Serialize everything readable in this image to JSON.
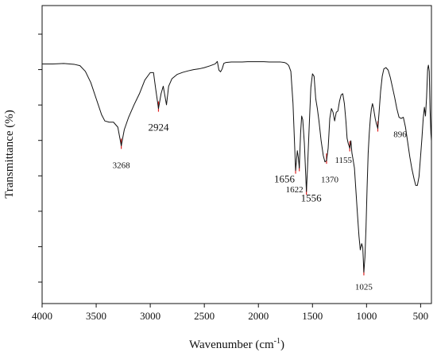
{
  "chart_data": {
    "type": "line",
    "title": "",
    "xlabel": "Wavenumber (cm",
    "xlabel_sup": "-1",
    "xlabel_end": ")",
    "ylabel": "Transmittance (%)",
    "xlim": [
      4000,
      400
    ],
    "x_reversed": true,
    "x_ticks": [
      "4000",
      "3500",
      "3000",
      "2500",
      "2000",
      "1500",
      "1000",
      "500"
    ],
    "x_tick_values": [
      4000,
      3500,
      3000,
      2500,
      2000,
      1500,
      1000,
      500
    ],
    "ylim": [
      0,
      100
    ],
    "y_tick_count": 8,
    "y_tick_labels_shown": false,
    "grid": false,
    "colors": {
      "line": "#111111",
      "peak_marker": "#e02020",
      "axis": "#111111"
    },
    "series": [
      {
        "points": [
          [
            4000,
            88.0
          ],
          [
            3900,
            88.0
          ],
          [
            3800,
            88.2
          ],
          [
            3700,
            87.8
          ],
          [
            3650,
            87.3
          ],
          [
            3600,
            85.0
          ],
          [
            3550,
            80.5
          ],
          [
            3500,
            74.0
          ],
          [
            3450,
            67.5
          ],
          [
            3420,
            65.0
          ],
          [
            3380,
            64.5
          ],
          [
            3340,
            64.5
          ],
          [
            3300,
            62.5
          ],
          [
            3268,
            55.0
          ],
          [
            3240,
            61.5
          ],
          [
            3200,
            66.5
          ],
          [
            3150,
            71.5
          ],
          [
            3100,
            76.0
          ],
          [
            3050,
            81.5
          ],
          [
            3000,
            84.5
          ],
          [
            2970,
            84.5
          ],
          [
            2950,
            78.0
          ],
          [
            2924,
            70.0
          ],
          [
            2900,
            76.0
          ],
          [
            2880,
            79.0
          ],
          [
            2860,
            74.0
          ],
          [
            2850,
            71.5
          ],
          [
            2830,
            79.0
          ],
          [
            2800,
            82.0
          ],
          [
            2750,
            83.8
          ],
          [
            2700,
            84.6
          ],
          [
            2650,
            85.2
          ],
          [
            2600,
            85.7
          ],
          [
            2550,
            86.0
          ],
          [
            2500,
            86.5
          ],
          [
            2450,
            87.2
          ],
          [
            2400,
            88.0
          ],
          [
            2380,
            89.0
          ],
          [
            2365,
            85.5
          ],
          [
            2350,
            84.8
          ],
          [
            2335,
            86.0
          ],
          [
            2320,
            88.2
          ],
          [
            2300,
            88.6
          ],
          [
            2250,
            88.8
          ],
          [
            2200,
            88.8
          ],
          [
            2150,
            88.8
          ],
          [
            2100,
            88.9
          ],
          [
            2050,
            88.9
          ],
          [
            2000,
            88.9
          ],
          [
            1950,
            88.9
          ],
          [
            1900,
            88.8
          ],
          [
            1850,
            88.8
          ],
          [
            1800,
            88.8
          ],
          [
            1760,
            88.6
          ],
          [
            1740,
            88.2
          ],
          [
            1720,
            87.4
          ],
          [
            1700,
            85.0
          ],
          [
            1680,
            72.0
          ],
          [
            1656,
            45.0
          ],
          [
            1640,
            53.0
          ],
          [
            1630,
            50.0
          ],
          [
            1622,
            46.0
          ],
          [
            1610,
            60.0
          ],
          [
            1600,
            67.0
          ],
          [
            1590,
            65.5
          ],
          [
            1575,
            56.0
          ],
          [
            1556,
            36.5
          ],
          [
            1545,
            47.0
          ],
          [
            1530,
            63.0
          ],
          [
            1515,
            78.5
          ],
          [
            1500,
            84.0
          ],
          [
            1485,
            83.0
          ],
          [
            1470,
            74.0
          ],
          [
            1455,
            70.0
          ],
          [
            1440,
            65.0
          ],
          [
            1420,
            57.0
          ],
          [
            1400,
            51.0
          ],
          [
            1385,
            48.5
          ],
          [
            1370,
            49.0
          ],
          [
            1355,
            54.0
          ],
          [
            1340,
            66.0
          ],
          [
            1325,
            70.0
          ],
          [
            1310,
            68.5
          ],
          [
            1295,
            65.0
          ],
          [
            1280,
            68.5
          ],
          [
            1265,
            69.0
          ],
          [
            1250,
            73.0
          ],
          [
            1235,
            75.5
          ],
          [
            1220,
            76.0
          ],
          [
            1205,
            72.0
          ],
          [
            1190,
            64.5
          ],
          [
            1180,
            58.0
          ],
          [
            1170,
            56.0
          ],
          [
            1155,
            54.0
          ],
          [
            1145,
            57.0
          ],
          [
            1135,
            52.0
          ],
          [
            1125,
            49.5
          ],
          [
            1112,
            46.0
          ],
          [
            1100,
            38.0
          ],
          [
            1085,
            28.0
          ],
          [
            1070,
            18.5
          ],
          [
            1058,
            13.0
          ],
          [
            1045,
            15.5
          ],
          [
            1035,
            14.0
          ],
          [
            1025,
            4.0
          ],
          [
            1015,
            10.0
          ],
          [
            1005,
            22.0
          ],
          [
            995,
            38.0
          ],
          [
            985,
            52.0
          ],
          [
            975,
            60.0
          ],
          [
            965,
            66.0
          ],
          [
            955,
            70.0
          ],
          [
            945,
            72.0
          ],
          [
            935,
            70.0
          ],
          [
            920,
            66.0
          ],
          [
            910,
            64.0
          ],
          [
            896,
            62.0
          ],
          [
            885,
            68.0
          ],
          [
            870,
            77.0
          ],
          [
            855,
            83.0
          ],
          [
            840,
            86.0
          ],
          [
            820,
            86.5
          ],
          [
            800,
            85.5
          ],
          [
            780,
            82.5
          ],
          [
            760,
            78.5
          ],
          [
            740,
            74.5
          ],
          [
            720,
            70.0
          ],
          [
            700,
            66.5
          ],
          [
            680,
            66.0
          ],
          [
            660,
            66.5
          ],
          [
            640,
            62.5
          ],
          [
            620,
            56.5
          ],
          [
            600,
            50.5
          ],
          [
            580,
            45.5
          ],
          [
            560,
            41.5
          ],
          [
            545,
            39.0
          ],
          [
            530,
            39.0
          ],
          [
            515,
            42.5
          ],
          [
            500,
            51.0
          ],
          [
            488,
            58.0
          ],
          [
            476,
            66.0
          ],
          [
            465,
            70.5
          ],
          [
            455,
            67.0
          ],
          [
            445,
            74.5
          ],
          [
            435,
            86.0
          ],
          [
            428,
            87.5
          ],
          [
            420,
            85.0
          ],
          [
            413,
            70.0
          ],
          [
            405,
            60.0
          ],
          [
            400,
            57.0
          ]
        ]
      }
    ],
    "peaks": [
      {
        "label": "3268",
        "x": 3268,
        "y": 55.0,
        "text_y": 46.0,
        "dx": 0,
        "size": "small",
        "tick": true
      },
      {
        "label": "2924",
        "x": 2924,
        "y": 70.0,
        "text_y": 61.0,
        "dx": 0,
        "size": "large",
        "tick": true
      },
      {
        "label": "1656",
        "x": 1656,
        "y": 45.0,
        "text_y": 40.2,
        "dx": -14,
        "size": "large",
        "tick": true
      },
      {
        "label": "1622",
        "x": 1622,
        "y": 46.0,
        "text_y": 36.2,
        "dx": -6,
        "size": "small",
        "tick": true
      },
      {
        "label": "1556",
        "x": 1556,
        "y": 36.5,
        "text_y": 32.5,
        "dx": 6,
        "size": "large",
        "tick": true
      },
      {
        "label": "1370",
        "x": 1370,
        "y": 49.0,
        "text_y": 40.2,
        "dx": 4,
        "size": "small",
        "tick": true
      },
      {
        "label": "1155",
        "x": 1155,
        "y": 54.0,
        "text_y": 48.0,
        "dx": -8,
        "size": "small",
        "tick": true
      },
      {
        "label": "1025",
        "x": 1025,
        "y": 4.0,
        "text_y": -3.0,
        "dx": 0,
        "size": "small",
        "tick": true
      },
      {
        "label": "896",
        "x": 896,
        "y": 62.0,
        "text_y": 58.5,
        "dx": 28,
        "size": "small",
        "tick": true
      }
    ]
  }
}
